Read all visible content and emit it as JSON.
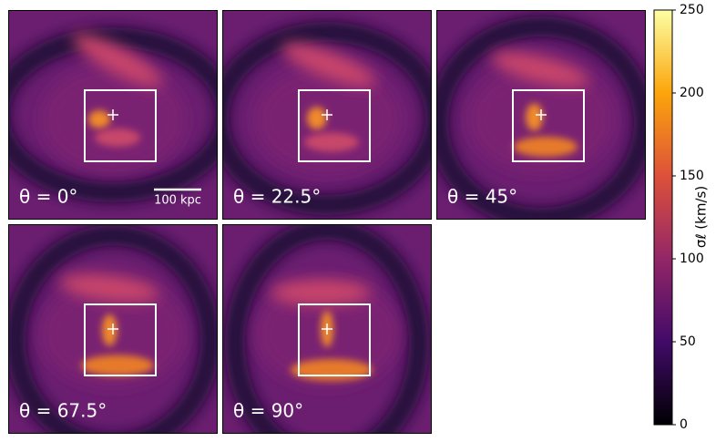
{
  "chart_data": {
    "type": "image-grid",
    "panels": [
      {
        "label": "θ = 0°"
      },
      {
        "label": "θ = 22.5°"
      },
      {
        "label": "θ = 45°"
      },
      {
        "label": "θ = 67.5°"
      },
      {
        "label": "θ = 90°"
      }
    ],
    "scale_bar": "100 kpc",
    "colormap": "inferno",
    "colorbar": {
      "label": "σℓ (km/s)",
      "lim": [
        0,
        250
      ],
      "ticks": [
        0,
        50,
        100,
        150,
        200,
        250
      ]
    }
  }
}
